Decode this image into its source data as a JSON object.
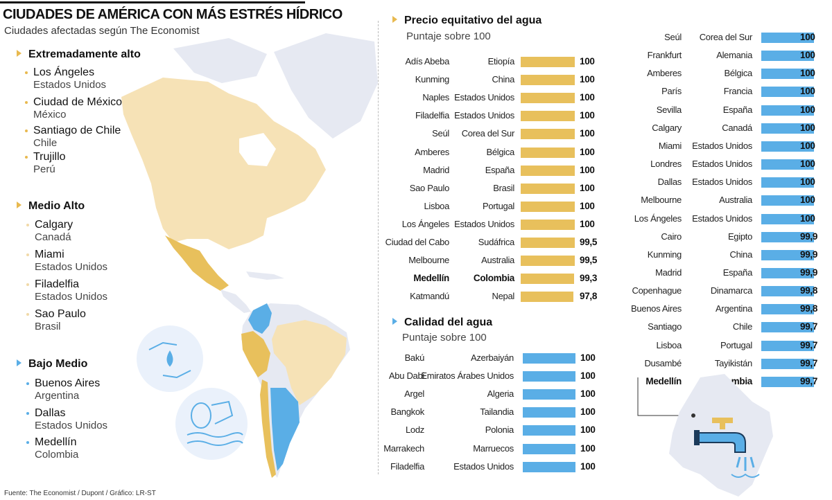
{
  "header": {
    "title": "CIUDADES DE AMÉRICA CON MÁS ESTRÉS HÍDRICO",
    "subtitle": "Ciudades afectadas según The Economist"
  },
  "legend_list": {
    "categories": [
      {
        "label": "Extremadamente alto",
        "cities": [
          {
            "city": "Los Ángeles",
            "country": "Estados Unidos"
          },
          {
            "city": "Ciudad de México",
            "country": "México"
          },
          {
            "city": "Santiago de Chile",
            "country": "Chile"
          },
          {
            "city": "Trujillo",
            "country": "Perú"
          }
        ]
      },
      {
        "label": "Medio Alto",
        "cities": [
          {
            "city": "Calgary",
            "country": "Canadá"
          },
          {
            "city": "Miami",
            "country": "Estados Unidos"
          },
          {
            "city": "Filadelfia",
            "country": "Estados Unidos"
          },
          {
            "city": "Sao Paulo",
            "country": "Brasil"
          }
        ]
      },
      {
        "label": "Bajo Medio",
        "cities": [
          {
            "city": "Buenos Aires",
            "country": "Argentina"
          },
          {
            "city": "Dallas",
            "country": "Estados Unidos"
          },
          {
            "city": "Medellín",
            "country": "Colombia"
          }
        ]
      }
    ]
  },
  "colors": {
    "gold": "#e8c05c",
    "blue": "#5aaee6",
    "light_land": "#f6e2b6",
    "mid_land": "#e8c05c",
    "grey_land": "#e6e9f2"
  },
  "chart_data": [
    {
      "type": "bar",
      "title": "Precio equitativo del agua",
      "subtitle": "Puntaje sobre 100",
      "xlim": [
        0,
        100
      ],
      "highlight": "Medellín",
      "rows": [
        {
          "city": "Adís Abeba",
          "country": "Etiopía",
          "value": 100,
          "label": "100"
        },
        {
          "city": "Kunming",
          "country": "China",
          "value": 100,
          "label": "100"
        },
        {
          "city": "Naples",
          "country": "Estados Unidos",
          "value": 100,
          "label": "100"
        },
        {
          "city": "Filadelfia",
          "country": "Estados Unidos",
          "value": 100,
          "label": "100"
        },
        {
          "city": "Seúl",
          "country": "Corea del Sur",
          "value": 100,
          "label": "100"
        },
        {
          "city": "Amberes",
          "country": "Bélgica",
          "value": 100,
          "label": "100"
        },
        {
          "city": "Madrid",
          "country": "España",
          "value": 100,
          "label": "100"
        },
        {
          "city": "Sao Paulo",
          "country": "Brasil",
          "value": 100,
          "label": "100"
        },
        {
          "city": "Lisboa",
          "country": "Portugal",
          "value": 100,
          "label": "100"
        },
        {
          "city": "Los Ángeles",
          "country": "Estados Unidos",
          "value": 100,
          "label": "100"
        },
        {
          "city": "Ciudad del Cabo",
          "country": "Sudáfrica",
          "value": 99.5,
          "label": "99,5"
        },
        {
          "city": "Melbourne",
          "country": "Australia",
          "value": 99.5,
          "label": "99,5"
        },
        {
          "city": "Medellín",
          "country": "Colombia",
          "value": 99.3,
          "label": "99,3"
        },
        {
          "city": "Katmandú",
          "country": "Nepal",
          "value": 97.8,
          "label": "97,8"
        }
      ]
    },
    {
      "type": "bar",
      "title": "Calidad del agua",
      "subtitle": "Puntaje sobre 100",
      "xlim": [
        0,
        100
      ],
      "highlight": "Medellín",
      "rows": [
        {
          "city": "Bakú",
          "country": "Azerbaiyán",
          "value": 100,
          "label": "100"
        },
        {
          "city": "Abu Dabi",
          "country": "Emiratos Árabes Unidos",
          "value": 100,
          "label": "100"
        },
        {
          "city": "Argel",
          "country": "Algeria",
          "value": 100,
          "label": "100"
        },
        {
          "city": "Bangkok",
          "country": "Tailandia",
          "value": 100,
          "label": "100"
        },
        {
          "city": "Lodz",
          "country": "Polonia",
          "value": 100,
          "label": "100"
        },
        {
          "city": "Marrakech",
          "country": "Marruecos",
          "value": 100,
          "label": "100"
        },
        {
          "city": "Filadelfia",
          "country": "Estados Unidos",
          "value": 100,
          "label": "100"
        },
        {
          "city": "Seúl",
          "country": "Corea del Sur",
          "value": 100,
          "label": "100"
        },
        {
          "city": "Frankfurt",
          "country": "Alemania",
          "value": 100,
          "label": "100"
        },
        {
          "city": "Amberes",
          "country": "Bélgica",
          "value": 100,
          "label": "100"
        },
        {
          "city": "París",
          "country": "Francia",
          "value": 100,
          "label": "100"
        },
        {
          "city": "Sevilla",
          "country": "España",
          "value": 100,
          "label": "100"
        },
        {
          "city": "Calgary",
          "country": "Canadá",
          "value": 100,
          "label": "100"
        },
        {
          "city": "Miami",
          "country": "Estados Unidos",
          "value": 100,
          "label": "100"
        },
        {
          "city": "Londres",
          "country": "Estados Unidos",
          "value": 100,
          "label": "100"
        },
        {
          "city": "Dallas",
          "country": "Estados Unidos",
          "value": 100,
          "label": "100"
        },
        {
          "city": "Melbourne",
          "country": "Australia",
          "value": 100,
          "label": "100"
        },
        {
          "city": "Los Ángeles",
          "country": "Estados Unidos",
          "value": 100,
          "label": "100"
        },
        {
          "city": "Cairo",
          "country": "Egipto",
          "value": 99.9,
          "label": "99,9"
        },
        {
          "city": "Kunming",
          "country": "China",
          "value": 99.9,
          "label": "99,9"
        },
        {
          "city": "Madrid",
          "country": "España",
          "value": 99.9,
          "label": "99,9"
        },
        {
          "city": "Copenhague",
          "country": "Dinamarca",
          "value": 99.8,
          "label": "99,8"
        },
        {
          "city": "Buenos Aires",
          "country": "Argentina",
          "value": 99.8,
          "label": "99,8"
        },
        {
          "city": "Santiago",
          "country": "Chile",
          "value": 99.7,
          "label": "99,7"
        },
        {
          "city": "Lisboa",
          "country": "Portugal",
          "value": 99.7,
          "label": "99,7"
        },
        {
          "city": "Dusambé",
          "country": "Tayikistán",
          "value": 99.7,
          "label": "99,7"
        },
        {
          "city": "Medellín",
          "country": "Colombia",
          "value": 99.7,
          "label": "99,7"
        }
      ]
    }
  ],
  "footer": {
    "source": "Fuente: The Economist / Dupont / Gráfico: LR-ST"
  }
}
